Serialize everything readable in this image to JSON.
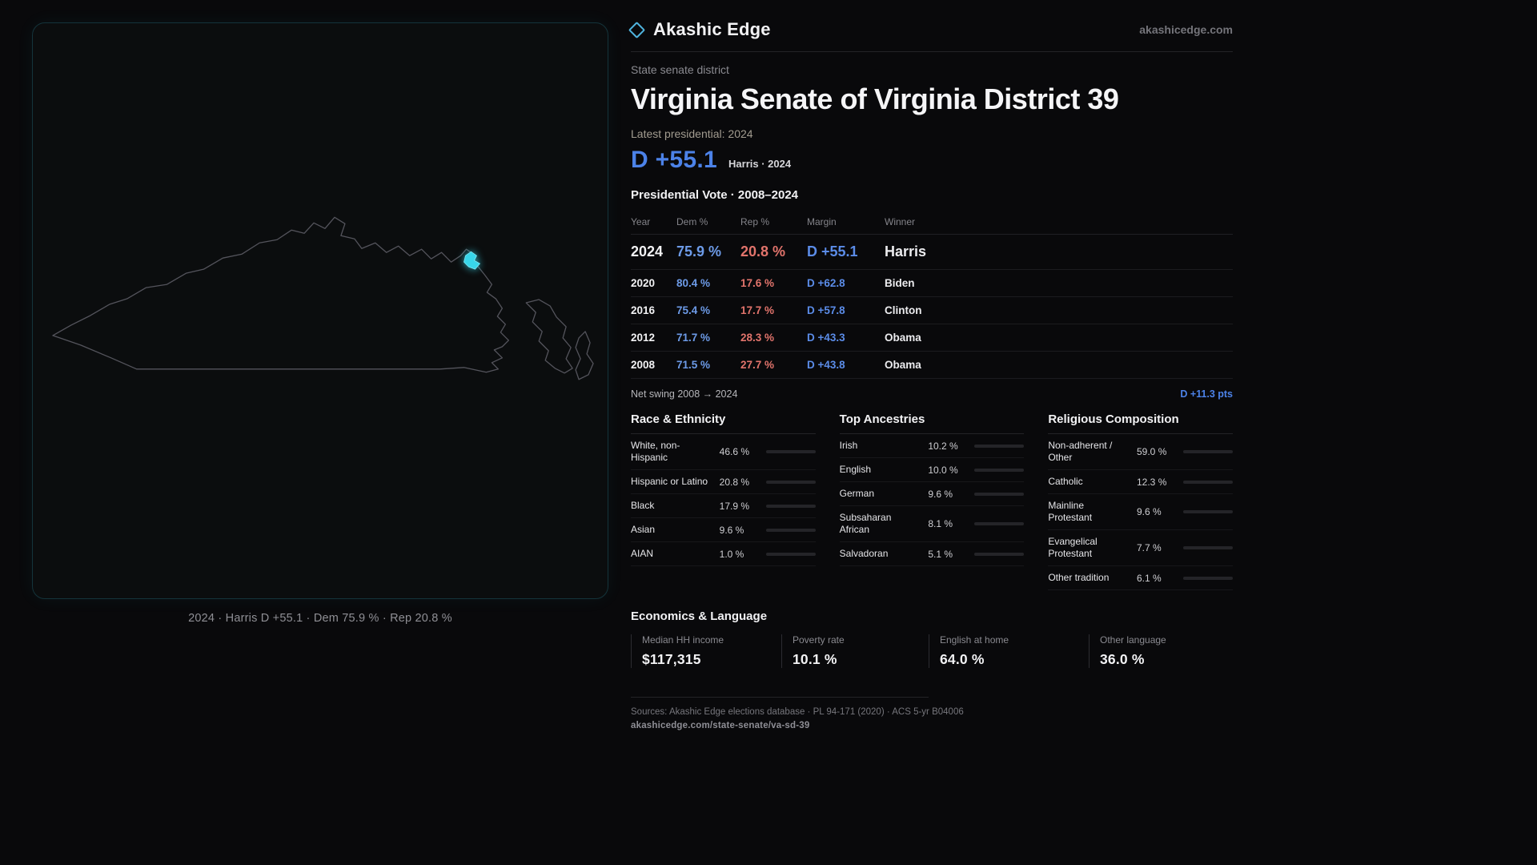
{
  "brand": {
    "name": "Akashic Edge",
    "site": "akashicedge.com"
  },
  "header": {
    "kicker": "State senate district",
    "title": "Virginia Senate of Virginia District 39",
    "latest": "Latest presidential: 2024",
    "margin": "D +55.1",
    "margin_detail": "Harris · 2024"
  },
  "map": {
    "caption": "2024 · Harris D +55.1 · Dem 75.9 % · Rep 20.8 %",
    "highlight_color": "#38d6ea"
  },
  "table": {
    "title": "Presidential Vote · 2008–2024",
    "columns": [
      "Year",
      "Dem %",
      "Rep %",
      "Margin",
      "Winner"
    ],
    "rows": [
      {
        "year": "2024",
        "dem": "75.9 %",
        "rep": "20.8 %",
        "margin": "D +55.1",
        "winner": "Harris"
      },
      {
        "year": "2020",
        "dem": "80.4 %",
        "rep": "17.6 %",
        "margin": "D +62.8",
        "winner": "Biden"
      },
      {
        "year": "2016",
        "dem": "75.4 %",
        "rep": "17.7 %",
        "margin": "D +57.8",
        "winner": "Clinton"
      },
      {
        "year": "2012",
        "dem": "71.7 %",
        "rep": "28.3 %",
        "margin": "D +43.3",
        "winner": "Obama"
      },
      {
        "year": "2008",
        "dem": "71.5 %",
        "rep": "27.7 %",
        "margin": "D +43.8",
        "winner": "Obama"
      }
    ]
  },
  "swing": {
    "label": "Net swing 2008 → 2024",
    "value": "D +11.3 pts"
  },
  "demographics": [
    {
      "title": "Race & Ethnicity",
      "rows": [
        {
          "label": "White, non-Hispanic",
          "value": "46.6 %",
          "pct": 46.6,
          "color": "#b9bec7"
        },
        {
          "label": "Hispanic or Latino",
          "value": "20.8 %",
          "pct": 20.8,
          "color": "#e0a54b"
        },
        {
          "label": "Black",
          "value": "17.9 %",
          "pct": 17.9,
          "color": "#b08ae6"
        },
        {
          "label": "Asian",
          "value": "9.6 %",
          "pct": 9.6,
          "color": "#4ec98c"
        },
        {
          "label": "AIAN",
          "value": "1.0 %",
          "pct": 1.0,
          "color": "#c06a4a"
        }
      ]
    },
    {
      "title": "Top Ancestries",
      "rows": [
        {
          "label": "Irish",
          "value": "10.2 %",
          "pct": 10.2,
          "color": "#b9bec7"
        },
        {
          "label": "English",
          "value": "10.0 %",
          "pct": 10.0,
          "color": "#b9bec7"
        },
        {
          "label": "German",
          "value": "9.6 %",
          "pct": 9.6,
          "color": "#b9bec7"
        },
        {
          "label": "Subsaharan African",
          "value": "8.1 %",
          "pct": 8.1,
          "color": "#8f86e8"
        },
        {
          "label": "Salvadoran",
          "value": "5.1 %",
          "pct": 5.1,
          "color": "#e0c24b"
        }
      ]
    },
    {
      "title": "Religious Composition",
      "rows": [
        {
          "label": "Non-adherent / Other",
          "value": "59.0 %",
          "pct": 59.0,
          "color": "#b9bec7"
        },
        {
          "label": "Catholic",
          "value": "12.3 %",
          "pct": 12.3,
          "color": "#e0b84b"
        },
        {
          "label": "Mainline Protestant",
          "value": "9.6 %",
          "pct": 9.6,
          "color": "#5b8ee6"
        },
        {
          "label": "Evangelical Protestant",
          "value": "7.7 %",
          "pct": 7.7,
          "color": "#e07a84"
        },
        {
          "label": "Other tradition",
          "value": "6.1 %",
          "pct": 6.1,
          "color": "#9a9aa2"
        }
      ]
    }
  ],
  "economics": {
    "title": "Economics & Language",
    "stats": [
      {
        "label": "Median HH income",
        "value": "$117,315"
      },
      {
        "label": "Poverty rate",
        "value": "10.1 %"
      },
      {
        "label": "English at home",
        "value": "64.0 %"
      },
      {
        "label": "Other language",
        "value": "36.0 %"
      }
    ]
  },
  "footer": {
    "sources": "Sources: Akashic Edge elections database · PL 94-171 (2020) · ACS 5-yr B04006",
    "permalink": "akashicedge.com/state-senate/va-sd-39"
  }
}
